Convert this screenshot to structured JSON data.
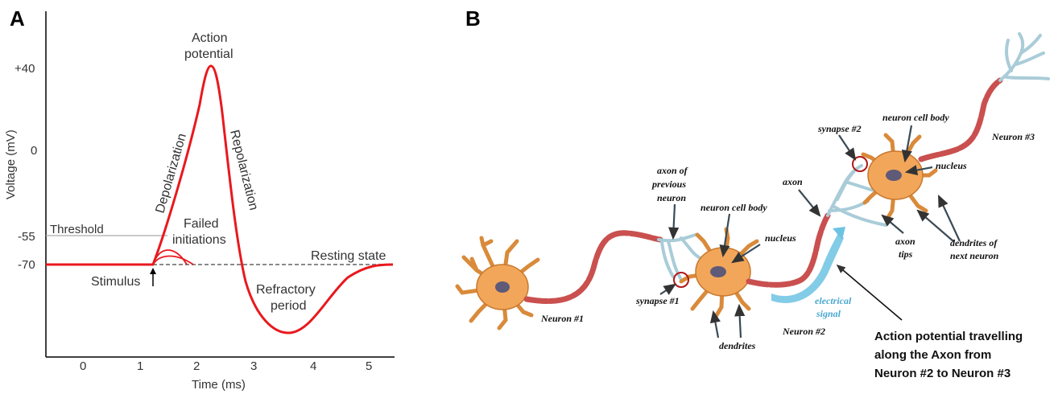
{
  "panel_a": {
    "letter": "A",
    "ylabel": "Voltage (mV)",
    "xlabel": "Time (ms)",
    "yticks": [
      "+40",
      "0",
      "-55",
      "-70"
    ],
    "xticks": [
      "0",
      "1",
      "2",
      "3",
      "4",
      "5"
    ],
    "labels": {
      "action_potential_1": "Action",
      "action_potential_2": "potential",
      "depolarization": "Depolarization",
      "repolarization": "Repolarization",
      "threshold": "Threshold",
      "failed_1": "Failed",
      "failed_2": "initiations",
      "resting": "Resting state",
      "stimulus": "Stimulus",
      "refractory_1": "Refractory",
      "refractory_2": "period"
    },
    "colors": {
      "trace": "#e8191e",
      "axis": "#000000",
      "threshold_line": "#aaaaaa",
      "resting_dash": "#8a8a8a"
    }
  },
  "panel_b": {
    "letter": "B",
    "labels": {
      "axon_prev_1": "axon of",
      "axon_prev_2": "previous",
      "axon_prev_3": "neuron",
      "cell_body_2": "neuron cell body",
      "nucleus_2": "nucleus",
      "synapse_1": "synapse #1",
      "dendrites": "dendrites",
      "neuron_1": "Neuron #1",
      "neuron_2": "Neuron #2",
      "electrical_1": "electrical",
      "electrical_2": "signal",
      "axon": "axon",
      "synapse_2": "synapse #2",
      "cell_body_3": "neuron cell body",
      "nucleus_3": "nucleus",
      "axon_tips_1": "axon",
      "axon_tips_2": "tips",
      "next_dendrites_1": "dendrites of",
      "next_dendrites_2": "next neuron",
      "neuron_3": "Neuron #3"
    },
    "caption": [
      "Action potential travelling",
      "along the Axon from",
      "Neuron #2 to Neuron #3"
    ],
    "colors": {
      "cell_body": "#f2a65a",
      "cell_outline": "#c8782d",
      "nucleus": "#5e5a78",
      "axon": "#c9504f",
      "axon_tips": "#a9ccd8",
      "signal": "#6cc3e3",
      "synapse_circle": "#b01818"
    }
  }
}
